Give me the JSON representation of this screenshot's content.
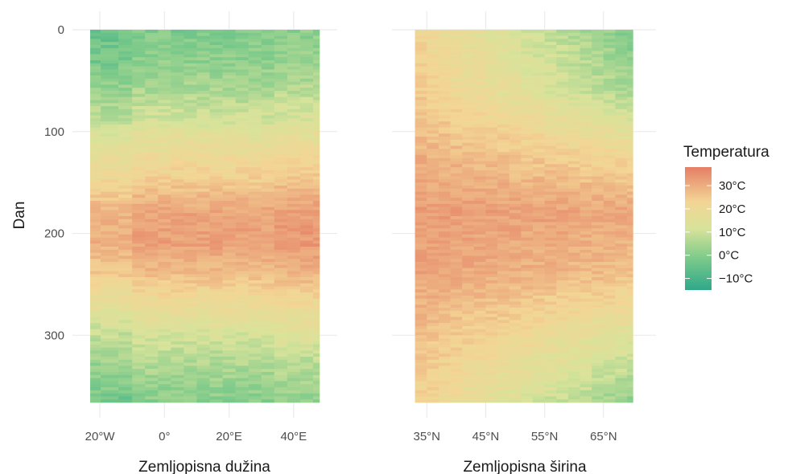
{
  "chart_data": [
    {
      "type": "heatmap",
      "panel": "left",
      "xlabel": "Zemljopisna dužina",
      "ylabel": "Dan",
      "x_ticks": [
        "20°W",
        "0°",
        "20°E",
        "40°E"
      ],
      "x_tick_values": [
        -20,
        0,
        20,
        40
      ],
      "xlim": [
        -25,
        50
      ],
      "y_ticks": [
        "0",
        "100",
        "200",
        "300"
      ],
      "y_tick_values": [
        0,
        100,
        200,
        300
      ],
      "ylim": [
        0,
        366
      ],
      "y_reversed": true,
      "x_columns": [
        -23,
        -16.5,
        -12,
        -8,
        -4,
        0,
        4,
        8,
        12,
        16,
        20,
        24,
        28,
        32,
        36,
        40,
        44,
        48
      ],
      "temperature_profile_by_day": [
        {
          "day": 0,
          "temp": -4
        },
        {
          "day": 30,
          "temp": -2
        },
        {
          "day": 60,
          "temp": 2
        },
        {
          "day": 90,
          "temp": 8
        },
        {
          "day": 120,
          "temp": 16
        },
        {
          "day": 150,
          "temp": 22
        },
        {
          "day": 180,
          "temp": 30
        },
        {
          "day": 210,
          "temp": 31
        },
        {
          "day": 240,
          "temp": 25
        },
        {
          "day": 270,
          "temp": 16
        },
        {
          "day": 300,
          "temp": 8
        },
        {
          "day": 330,
          "temp": 2
        },
        {
          "day": 366,
          "temp": -3
        }
      ],
      "grid": true
    },
    {
      "type": "heatmap",
      "panel": "right",
      "xlabel": "Zemljopisna širina",
      "x_ticks": [
        "35°N",
        "45°N",
        "55°N",
        "65°N"
      ],
      "x_tick_values": [
        35,
        45,
        55,
        65
      ],
      "xlim": [
        31,
        72
      ],
      "y_ticks": [],
      "ylim": [
        0,
        366
      ],
      "y_reversed": true,
      "x_columns": [
        32,
        34,
        36,
        38,
        40,
        42,
        44,
        46,
        48,
        50,
        52,
        54,
        56,
        58,
        60,
        62,
        64,
        66,
        68,
        70
      ],
      "temperature_profile_by_day": [
        {
          "day": 0,
          "temp": 12
        },
        {
          "day": 60,
          "temp": 15
        },
        {
          "day": 120,
          "temp": 24
        },
        {
          "day": 180,
          "temp": 31
        },
        {
          "day": 240,
          "temp": 28
        },
        {
          "day": 300,
          "temp": 20
        },
        {
          "day": 366,
          "temp": 13
        }
      ],
      "grid": true
    }
  ],
  "legend": {
    "title": "Temperatura",
    "labels": [
      "30°C",
      "20°C",
      "10°C",
      "0°C",
      "−10°C"
    ],
    "values": [
      30,
      20,
      10,
      0,
      -10
    ],
    "range": [
      -15,
      38
    ],
    "placement": "right",
    "colors": {
      "low": "#3aaf8f",
      "mid_low": "#8fd08a",
      "mid": "#f0e3a0",
      "mid_high": "#f2b27a",
      "high": "#e6836a"
    }
  }
}
